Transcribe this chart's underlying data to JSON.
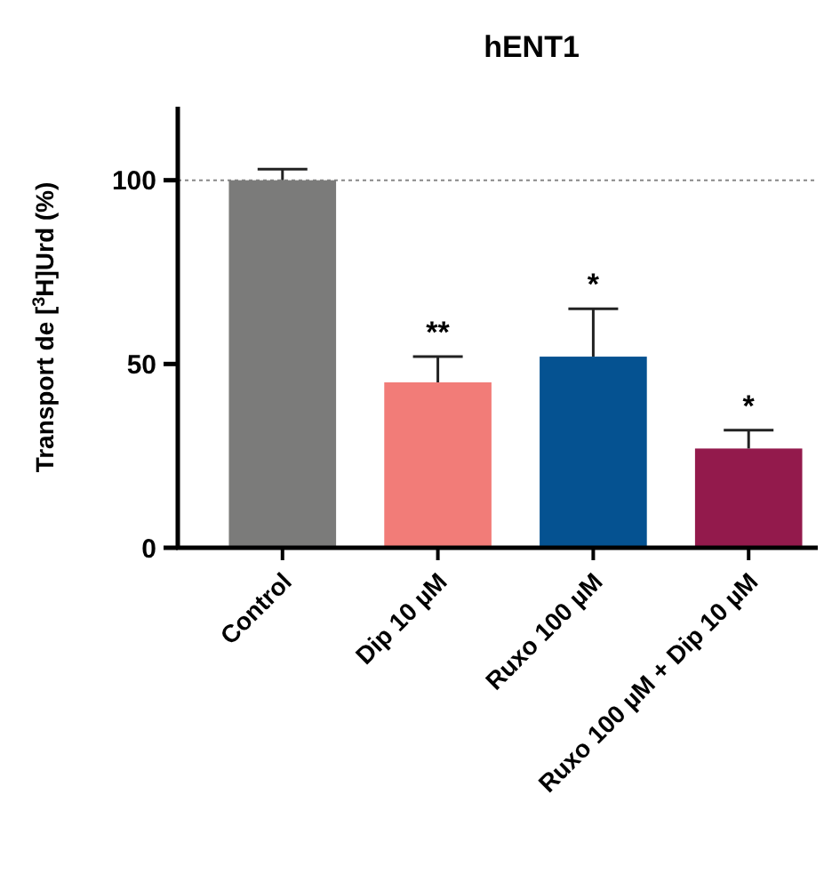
{
  "chart_data": {
    "type": "bar",
    "title": "hENT1",
    "ylabel": "Transport de [$^{3}$H]Urd (%)",
    "categories": [
      "Control",
      "Dip 10 µM",
      "Ruxo 100 µM",
      "Ruxo 100 µM + Dip 10 µM"
    ],
    "values": [
      100,
      45,
      52,
      27
    ],
    "colors": [
      "#7b7b7a",
      "#f27c78",
      "#055291",
      "#931a4c"
    ],
    "errors": [
      [
        100,
        103
      ],
      [
        45,
        52
      ],
      [
        52,
        65
      ],
      [
        27,
        32
      ]
    ],
    "ylim": [
      0,
      120
    ],
    "yticks": [
      0,
      50,
      100
    ],
    "ref_lines": [
      {
        "axis": "y",
        "value": 100,
        "color": "#888888",
        "line_style": "dotted"
      }
    ],
    "annotations": [
      {
        "text": "**",
        "x": "Dip 10 µM",
        "y": 52
      },
      {
        "text": "*",
        "x": "Ruxo 100 µM",
        "y": 65
      },
      {
        "text": "*",
        "x": "Ruxo 100 µM + Dip 10 µM",
        "y": 32
      }
    ],
    "grid": false
  }
}
